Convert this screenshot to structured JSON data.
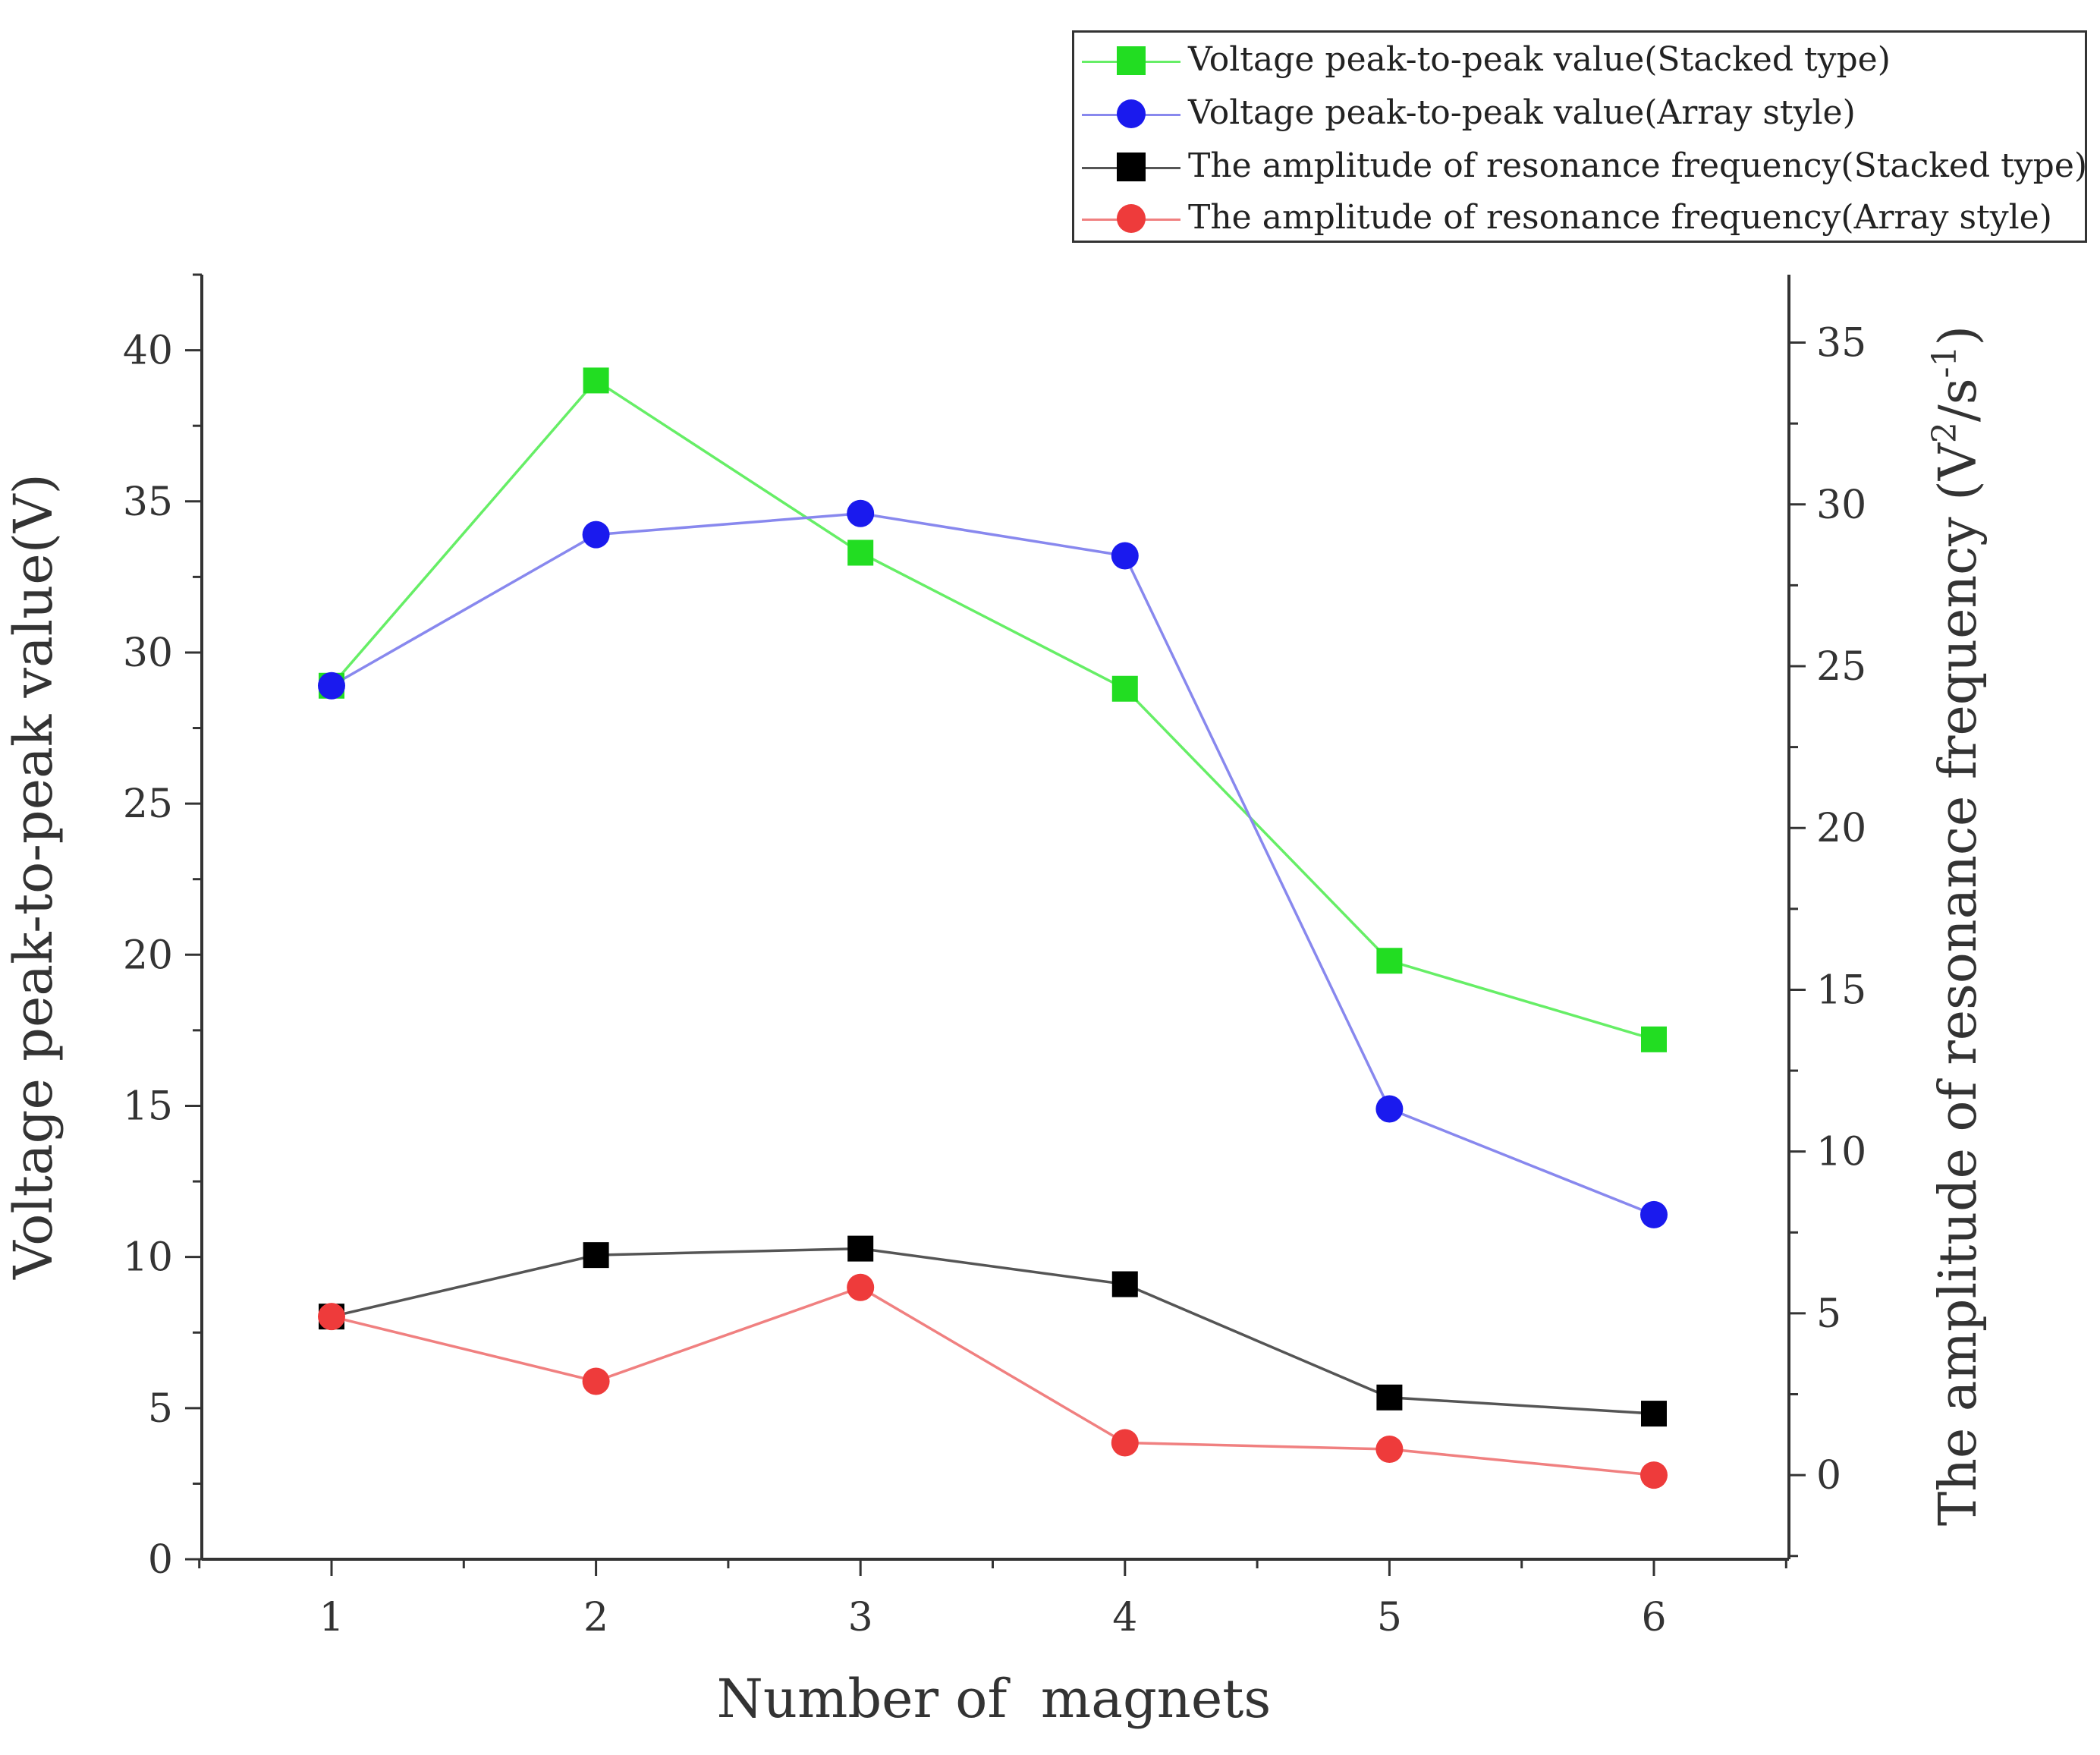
{
  "chart_data": {
    "type": "line",
    "xlabel": "Number of  magnets",
    "ylabel_left": "Voltage peak-to-peak value(V)",
    "ylabel_right_base": "The amplitude of resonance frequency (V",
    "ylabel_right_sup1": "2",
    "ylabel_right_mid": "/s",
    "ylabel_right_sup2": "-1",
    "ylabel_right_end": ")",
    "x": [
      1,
      2,
      3,
      4,
      5,
      6
    ],
    "x_ticks": [
      "1",
      "2",
      "3",
      "4",
      "5",
      "6"
    ],
    "ylim_left": [
      0,
      42.5
    ],
    "yticks_left": [
      "0",
      "5",
      "10",
      "15",
      "20",
      "25",
      "30",
      "35",
      "40"
    ],
    "ylim_right": [
      -2.6,
      37.1
    ],
    "yticks_right": [
      "0",
      "5",
      "10",
      "15",
      "20",
      "25",
      "30",
      "35"
    ],
    "series": [
      {
        "name": "Voltage peak-to-peak value(Stacked type)",
        "axis": "left",
        "marker": "square",
        "color": "#22dd22",
        "values": [
          28.9,
          39.0,
          33.3,
          28.8,
          19.8,
          17.2
        ]
      },
      {
        "name": "Voltage peak-to-peak value(Array style)",
        "axis": "left",
        "marker": "circle",
        "color": "#1a1aee",
        "values": [
          28.9,
          33.9,
          34.6,
          33.2,
          14.9,
          11.4
        ]
      },
      {
        "name": "The amplitude of resonance frequency(Stacked type)",
        "axis": "right",
        "marker": "square",
        "color": "#000000",
        "values": [
          4.9,
          6.8,
          7.0,
          5.9,
          2.4,
          1.9
        ]
      },
      {
        "name": "The amplitude of resonance frequency(Array style)",
        "axis": "right",
        "marker": "circle",
        "color": "#ee3b3b",
        "values": [
          4.9,
          2.9,
          5.8,
          1.0,
          0.8,
          0.0
        ]
      }
    ]
  },
  "colors": {
    "line_green": "#66ee66",
    "line_blue": "#8888ee",
    "line_black": "#555555",
    "line_red": "#f08080"
  }
}
